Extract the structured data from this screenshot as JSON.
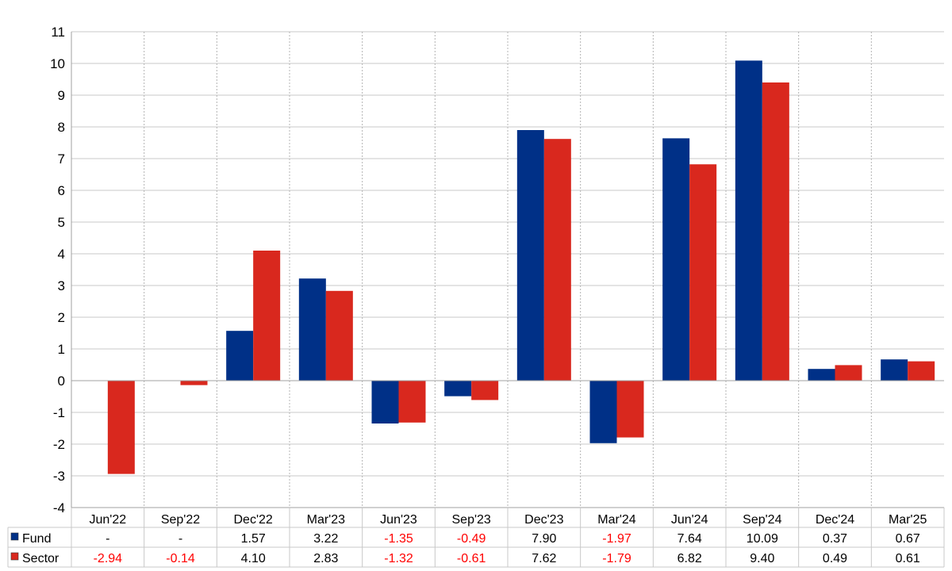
{
  "chart_data": {
    "type": "bar",
    "title": "",
    "xlabel": "",
    "ylabel": "",
    "ylim": [
      -4,
      11
    ],
    "yticks": [
      -4,
      -3,
      -2,
      -1,
      0,
      1,
      2,
      3,
      4,
      5,
      6,
      7,
      8,
      9,
      10,
      11
    ],
    "grid": true,
    "legend": "table-below",
    "categories": [
      "Jun'22",
      "Sep'22",
      "Dec'22",
      "Mar'23",
      "Jun'23",
      "Sep'23",
      "Dec'23",
      "Mar'24",
      "Jun'24",
      "Sep'24",
      "Dec'24",
      "Mar'25"
    ],
    "series": [
      {
        "name": "Fund",
        "color": "#003087",
        "values": [
          null,
          null,
          1.57,
          3.22,
          -1.35,
          -0.49,
          7.9,
          -1.97,
          7.64,
          10.09,
          0.37,
          0.67
        ],
        "labels": [
          "-",
          "-",
          "1.57",
          "3.22",
          "-1.35",
          "-0.49",
          "7.90",
          "-1.97",
          "7.64",
          "10.09",
          "0.37",
          "0.67"
        ]
      },
      {
        "name": "Sector",
        "color": "#d9281e",
        "values": [
          -2.94,
          -0.14,
          4.1,
          2.83,
          -1.32,
          -0.61,
          7.62,
          -1.79,
          6.82,
          9.4,
          0.49,
          0.61
        ],
        "labels": [
          "-2.94",
          "-0.14",
          "4.10",
          "2.83",
          "-1.32",
          "-0.61",
          "7.62",
          "-1.79",
          "6.82",
          "9.40",
          "0.49",
          "0.61"
        ]
      }
    ]
  }
}
